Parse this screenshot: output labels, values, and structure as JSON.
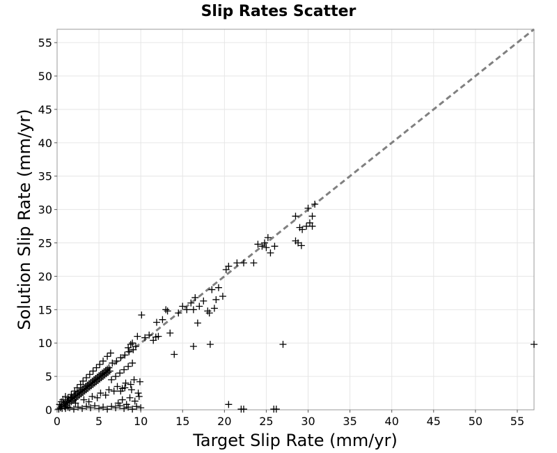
{
  "chart_data": {
    "type": "scatter",
    "title": "Slip Rates Scatter",
    "xlabel": "Target Slip Rate (mm/yr)",
    "ylabel": "Solution Slip Rate (mm/yr)",
    "xlim": [
      0,
      57
    ],
    "ylim": [
      0,
      57
    ],
    "xticks": [
      0,
      5,
      10,
      15,
      20,
      25,
      30,
      35,
      40,
      45,
      50,
      55
    ],
    "yticks": [
      0,
      5,
      10,
      15,
      20,
      25,
      30,
      35,
      40,
      45,
      50,
      55
    ],
    "grid": true,
    "reference_line": {
      "style": "dashed",
      "color": "#808080",
      "x": [
        0,
        57
      ],
      "y": [
        0,
        57
      ]
    },
    "marker": {
      "shape": "plus",
      "color": "#000000"
    },
    "points": [
      [
        0.2,
        0.1
      ],
      [
        0.4,
        0.3
      ],
      [
        0.5,
        0.6
      ],
      [
        0.6,
        0.2
      ],
      [
        0.8,
        0.9
      ],
      [
        0.9,
        0.5
      ],
      [
        1.0,
        1.1
      ],
      [
        1.1,
        0.7
      ],
      [
        1.2,
        1.3
      ],
      [
        1.3,
        0.4
      ],
      [
        1.4,
        1.5
      ],
      [
        1.5,
        1.0
      ],
      [
        1.6,
        1.7
      ],
      [
        1.7,
        1.2
      ],
      [
        1.8,
        1.9
      ],
      [
        1.9,
        1.4
      ],
      [
        2.0,
        2.1
      ],
      [
        2.1,
        1.6
      ],
      [
        2.2,
        2.3
      ],
      [
        2.3,
        1.8
      ],
      [
        2.4,
        2.5
      ],
      [
        2.5,
        2.0
      ],
      [
        2.6,
        2.7
      ],
      [
        2.7,
        2.2
      ],
      [
        2.8,
        2.9
      ],
      [
        2.9,
        2.4
      ],
      [
        3.0,
        3.1
      ],
      [
        3.1,
        2.6
      ],
      [
        3.2,
        3.3
      ],
      [
        3.3,
        2.8
      ],
      [
        3.4,
        3.5
      ],
      [
        3.5,
        3.0
      ],
      [
        3.6,
        3.7
      ],
      [
        3.7,
        3.2
      ],
      [
        3.8,
        3.9
      ],
      [
        3.9,
        3.4
      ],
      [
        4.0,
        4.1
      ],
      [
        4.1,
        3.6
      ],
      [
        4.2,
        4.3
      ],
      [
        4.3,
        3.8
      ],
      [
        4.4,
        4.5
      ],
      [
        4.5,
        4.0
      ],
      [
        4.6,
        4.7
      ],
      [
        4.7,
        4.2
      ],
      [
        4.8,
        4.9
      ],
      [
        4.9,
        4.4
      ],
      [
        5.0,
        5.1
      ],
      [
        5.1,
        4.6
      ],
      [
        5.2,
        5.3
      ],
      [
        5.3,
        4.8
      ],
      [
        5.4,
        5.5
      ],
      [
        5.5,
        5.0
      ],
      [
        5.6,
        5.7
      ],
      [
        5.7,
        5.2
      ],
      [
        5.8,
        5.9
      ],
      [
        5.9,
        5.4
      ],
      [
        6.0,
        6.1
      ],
      [
        6.1,
        5.6
      ],
      [
        6.2,
        6.3
      ],
      [
        6.3,
        5.8
      ],
      [
        1.0,
        0.2
      ],
      [
        1.5,
        0.3
      ],
      [
        2.0,
        0.1
      ],
      [
        2.5,
        0.4
      ],
      [
        3.0,
        0.2
      ],
      [
        3.5,
        0.5
      ],
      [
        4.0,
        0.3
      ],
      [
        4.5,
        0.6
      ],
      [
        5.0,
        0.2
      ],
      [
        5.5,
        0.4
      ],
      [
        6.0,
        0.1
      ],
      [
        6.5,
        0.5
      ],
      [
        7.0,
        0.3
      ],
      [
        7.5,
        0.6
      ],
      [
        8.0,
        0.2
      ],
      [
        8.5,
        0.4
      ],
      [
        9.0,
        0.1
      ],
      [
        9.5,
        0.5
      ],
      [
        10.0,
        0.3
      ],
      [
        2.2,
        1.0
      ],
      [
        3.2,
        1.5
      ],
      [
        4.2,
        2.0
      ],
      [
        5.2,
        2.5
      ],
      [
        6.2,
        3.0
      ],
      [
        7.2,
        3.5
      ],
      [
        8.2,
        4.0
      ],
      [
        9.2,
        4.5
      ],
      [
        3.8,
        1.2
      ],
      [
        4.8,
        1.8
      ],
      [
        5.8,
        2.2
      ],
      [
        6.8,
        2.8
      ],
      [
        7.8,
        3.2
      ],
      [
        8.8,
        3.8
      ],
      [
        9.8,
        2.0
      ],
      [
        6.5,
        4.5
      ],
      [
        7.0,
        5.0
      ],
      [
        7.5,
        5.5
      ],
      [
        8.0,
        6.0
      ],
      [
        8.5,
        6.5
      ],
      [
        9.0,
        7.0
      ],
      [
        6.6,
        7.0
      ],
      [
        7.1,
        7.3
      ],
      [
        7.6,
        7.8
      ],
      [
        8.1,
        8.2
      ],
      [
        8.6,
        8.7
      ],
      [
        9.1,
        9.0
      ],
      [
        9.4,
        9.5
      ],
      [
        9.0,
        10.0
      ],
      [
        8.5,
        9.3
      ],
      [
        8.8,
        9.8
      ],
      [
        9.6,
        11.0
      ],
      [
        10.1,
        14.2
      ],
      [
        10.5,
        10.8
      ],
      [
        11.0,
        11.2
      ],
      [
        11.5,
        10.4
      ],
      [
        11.8,
        10.9
      ],
      [
        12.1,
        11.0
      ],
      [
        12.6,
        13.5
      ],
      [
        13.0,
        15.0
      ],
      [
        13.2,
        14.8
      ],
      [
        13.5,
        11.5
      ],
      [
        14.0,
        8.3
      ],
      [
        11.9,
        13.1
      ],
      [
        14.5,
        14.5
      ],
      [
        15.0,
        15.5
      ],
      [
        15.5,
        15.0
      ],
      [
        16.0,
        16.0
      ],
      [
        16.3,
        15.0
      ],
      [
        16.5,
        16.8
      ],
      [
        16.8,
        13.0
      ],
      [
        17.0,
        15.5
      ],
      [
        17.5,
        16.3
      ],
      [
        18.0,
        14.8
      ],
      [
        18.2,
        14.5
      ],
      [
        18.5,
        18.0
      ],
      [
        18.8,
        15.2
      ],
      [
        19.0,
        16.5
      ],
      [
        19.3,
        18.3
      ],
      [
        19.8,
        17.0
      ],
      [
        20.2,
        21.0
      ],
      [
        20.5,
        21.5
      ],
      [
        21.5,
        22.0
      ],
      [
        22.3,
        22.0
      ],
      [
        23.5,
        22.0
      ],
      [
        24.0,
        24.8
      ],
      [
        24.5,
        24.5
      ],
      [
        24.8,
        25.0
      ],
      [
        25.0,
        24.3
      ],
      [
        25.2,
        25.8
      ],
      [
        25.5,
        23.5
      ],
      [
        26.0,
        24.5
      ],
      [
        28.5,
        25.3
      ],
      [
        28.8,
        25.0
      ],
      [
        29.2,
        24.6
      ],
      [
        28.5,
        29.0
      ],
      [
        29.0,
        27.3
      ],
      [
        29.3,
        27.0
      ],
      [
        30.0,
        30.2
      ],
      [
        30.2,
        28.0
      ],
      [
        30.5,
        29.0
      ],
      [
        30.5,
        27.5
      ],
      [
        29.8,
        27.5
      ],
      [
        30.8,
        30.8
      ],
      [
        16.3,
        9.5
      ],
      [
        18.3,
        9.8
      ],
      [
        27.0,
        9.8
      ],
      [
        20.5,
        0.8
      ],
      [
        22.0,
        0.1
      ],
      [
        22.3,
        0.1
      ],
      [
        25.9,
        0.1
      ],
      [
        26.2,
        0.1
      ],
      [
        57.0,
        9.8
      ],
      [
        1.3,
        1.8
      ],
      [
        1.7,
        2.3
      ],
      [
        2.1,
        2.8
      ],
      [
        2.4,
        3.3
      ],
      [
        2.8,
        3.8
      ],
      [
        3.1,
        4.3
      ],
      [
        3.5,
        4.8
      ],
      [
        3.9,
        5.3
      ],
      [
        4.3,
        5.8
      ],
      [
        4.7,
        6.3
      ],
      [
        5.1,
        6.8
      ],
      [
        5.5,
        7.3
      ],
      [
        6.0,
        8.0
      ],
      [
        6.4,
        8.5
      ],
      [
        0.7,
        1.5
      ],
      [
        1.0,
        2.0
      ],
      [
        0.5,
        1.2
      ],
      [
        0.3,
        0.8
      ],
      [
        7.3,
        1.0
      ],
      [
        7.8,
        1.5
      ],
      [
        8.3,
        0.8
      ],
      [
        8.7,
        1.8
      ],
      [
        9.3,
        1.3
      ],
      [
        9.7,
        2.5
      ],
      [
        7.6,
        2.8
      ],
      [
        8.1,
        3.3
      ],
      [
        8.9,
        3.0
      ],
      [
        9.9,
        4.2
      ]
    ]
  }
}
